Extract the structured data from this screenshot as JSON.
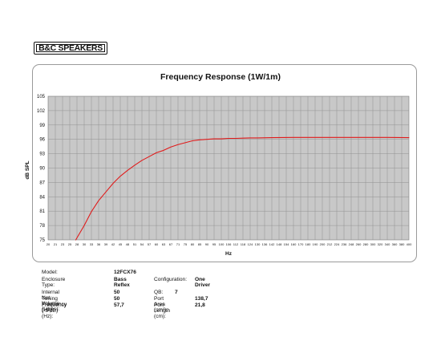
{
  "brand": {
    "logo_text": "B&C SPEAKERS"
  },
  "chart_data": {
    "type": "line",
    "title": "Frequency Response (1W/1m)",
    "xlabel": "Hz",
    "ylabel": "dB SPL",
    "ylim": [
      75,
      105
    ],
    "y_ticks": [
      75,
      78,
      81,
      84,
      87,
      90,
      93,
      96,
      99,
      102,
      105
    ],
    "x_ticks": [
      20,
      21,
      23,
      25,
      28,
      30,
      33,
      36,
      39,
      42,
      45,
      48,
      51,
      54,
      57,
      60,
      63,
      67,
      71,
      75,
      80,
      85,
      90,
      95,
      100,
      106,
      112,
      118,
      124,
      130,
      136,
      142,
      148,
      154,
      160,
      170,
      180,
      190,
      200,
      212,
      224,
      236,
      248,
      260,
      280,
      300,
      320,
      340,
      360,
      380,
      400
    ],
    "grid": true,
    "series": [
      {
        "color": "#e01b1b",
        "x": [
          27.5,
          30,
          33,
          36,
          39,
          42,
          45,
          48,
          51,
          54,
          57,
          60,
          63,
          67,
          71,
          75,
          80,
          85,
          90,
          95,
          100,
          106,
          112,
          118,
          124,
          130,
          142,
          160,
          200,
          260,
          340,
          400
        ],
        "y": [
          75.0,
          78.0,
          80.9,
          83.2,
          85.0,
          86.8,
          88.3,
          89.5,
          90.6,
          91.6,
          92.4,
          93.2,
          93.7,
          94.4,
          94.9,
          95.3,
          95.7,
          95.9,
          96.0,
          96.1,
          96.1,
          96.2,
          96.2,
          96.25,
          96.3,
          96.3,
          96.35,
          96.4,
          96.4,
          96.4,
          96.4,
          96.35
        ]
      }
    ]
  },
  "specs": {
    "model_label": "Model:",
    "model_value": "12FCX76",
    "enclosure_label": "Enclosure Type:",
    "enclosure_value": "Bass Reflex",
    "config_label": "Configuration:",
    "config_value": "One Driver",
    "volume_label": "Internal  Net Volume (Litres):",
    "volume_value": "50",
    "qb_label": "QB:",
    "qb_value": "7",
    "tuning_label": "Tuning Frequency (Hz):",
    "tuning_value": "50",
    "port_area_label": "Port Area (cm²):",
    "port_area_value": "138,7",
    "f3_label": "Frequency (-3 dB) (Hz):",
    "f3_value": "57,7",
    "port_len_label": "Port Length (cm):",
    "port_len_value": "21,8"
  }
}
